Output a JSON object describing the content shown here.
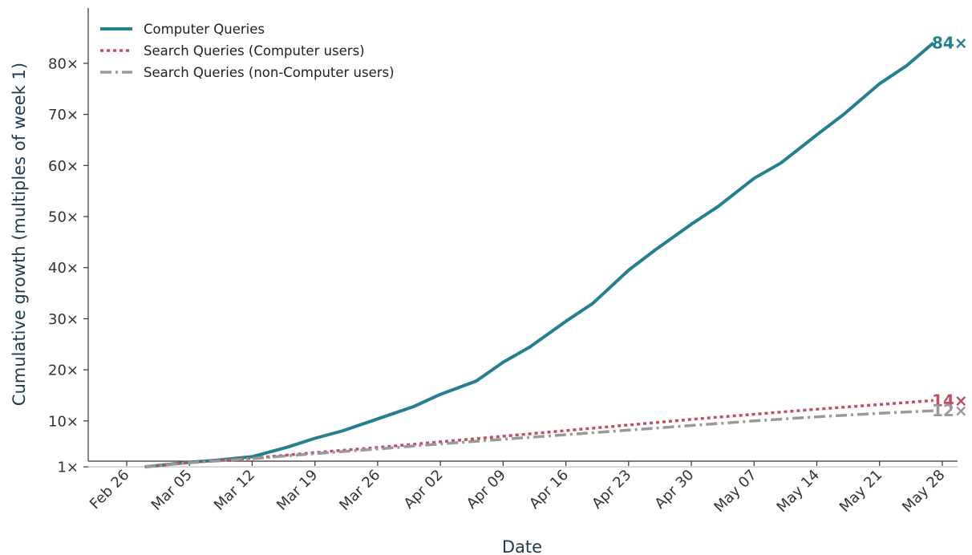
{
  "chart_data": {
    "type": "line",
    "title": "",
    "xlabel": "Date",
    "ylabel": "Cumulative growth (multiples of week 1)",
    "x_ticks": [
      "Feb 26",
      "Mar 05",
      "Mar 12",
      "Mar 19",
      "Mar 26",
      "Apr 02",
      "Apr 09",
      "Apr 16",
      "Apr 23",
      "Apr 30",
      "May 07",
      "May 14",
      "May 21",
      "May 28"
    ],
    "x_range": [
      "2025-02-26",
      "2025-06-03"
    ],
    "y_ticks": [
      {
        "value": 1,
        "label": "1×"
      },
      {
        "value": 10,
        "label": "10×"
      },
      {
        "value": 20,
        "label": "20×"
      },
      {
        "value": 30,
        "label": "30×"
      },
      {
        "value": 40,
        "label": "40×"
      },
      {
        "value": 50,
        "label": "50×"
      },
      {
        "value": 60,
        "label": "60×"
      },
      {
        "value": 70,
        "label": "70×"
      },
      {
        "value": 80,
        "label": "80×"
      }
    ],
    "ylim": [
      0,
      88
    ],
    "reference_line": 1,
    "grid": false,
    "legend_position": "top-left",
    "series": [
      {
        "name": "Computer Queries",
        "color": "#24808e",
        "style": "solid",
        "end_label": "84×",
        "points": [
          [
            "2025-02-28",
            1.0
          ],
          [
            "2025-03-05",
            1.9
          ],
          [
            "2025-03-08",
            2.3
          ],
          [
            "2025-03-12",
            3.0
          ],
          [
            "2025-03-16",
            4.9
          ],
          [
            "2025-03-19",
            6.6
          ],
          [
            "2025-03-22",
            8.0
          ],
          [
            "2025-03-26",
            10.4
          ],
          [
            "2025-03-30",
            12.8
          ],
          [
            "2025-04-02",
            15.2
          ],
          [
            "2025-04-06",
            17.8
          ],
          [
            "2025-04-09",
            21.5
          ],
          [
            "2025-04-12",
            24.5
          ],
          [
            "2025-04-16",
            29.5
          ],
          [
            "2025-04-19",
            33.0
          ],
          [
            "2025-04-23",
            39.5
          ],
          [
            "2025-04-26",
            43.5
          ],
          [
            "2025-04-30",
            48.5
          ],
          [
            "2025-05-03",
            52.0
          ],
          [
            "2025-05-07",
            57.5
          ],
          [
            "2025-05-10",
            60.5
          ],
          [
            "2025-05-14",
            66.0
          ],
          [
            "2025-05-17",
            70.0
          ],
          [
            "2025-05-21",
            76.0
          ],
          [
            "2025-05-24",
            79.5
          ],
          [
            "2025-05-27",
            84.0
          ]
        ]
      },
      {
        "name": "Search Queries (Computer users)",
        "color": "#c14f5e",
        "style": "dotted",
        "end_label": "14×",
        "points": [
          [
            "2025-02-28",
            1.0
          ],
          [
            "2025-03-05",
            1.9
          ],
          [
            "2025-03-12",
            2.7
          ],
          [
            "2025-03-19",
            3.8
          ],
          [
            "2025-03-26",
            4.8
          ],
          [
            "2025-04-02",
            5.9
          ],
          [
            "2025-04-09",
            7.0
          ],
          [
            "2025-04-16",
            8.1
          ],
          [
            "2025-04-23",
            9.2
          ],
          [
            "2025-04-30",
            10.3
          ],
          [
            "2025-05-07",
            11.3
          ],
          [
            "2025-05-14",
            12.3
          ],
          [
            "2025-05-21",
            13.2
          ],
          [
            "2025-05-27",
            14.0
          ]
        ]
      },
      {
        "name": "Search Queries (non-Computer users)",
        "color": "#999999",
        "style": "dashdot",
        "end_label": "12×",
        "points": [
          [
            "2025-02-28",
            1.0
          ],
          [
            "2025-03-05",
            1.8
          ],
          [
            "2025-03-12",
            2.6
          ],
          [
            "2025-03-19",
            3.6
          ],
          [
            "2025-03-26",
            4.5
          ],
          [
            "2025-04-02",
            5.5
          ],
          [
            "2025-04-09",
            6.4
          ],
          [
            "2025-04-16",
            7.3
          ],
          [
            "2025-04-23",
            8.2
          ],
          [
            "2025-04-30",
            9.1
          ],
          [
            "2025-05-07",
            10.0
          ],
          [
            "2025-05-14",
            10.8
          ],
          [
            "2025-05-21",
            11.5
          ],
          [
            "2025-05-27",
            12.0
          ]
        ]
      }
    ]
  }
}
